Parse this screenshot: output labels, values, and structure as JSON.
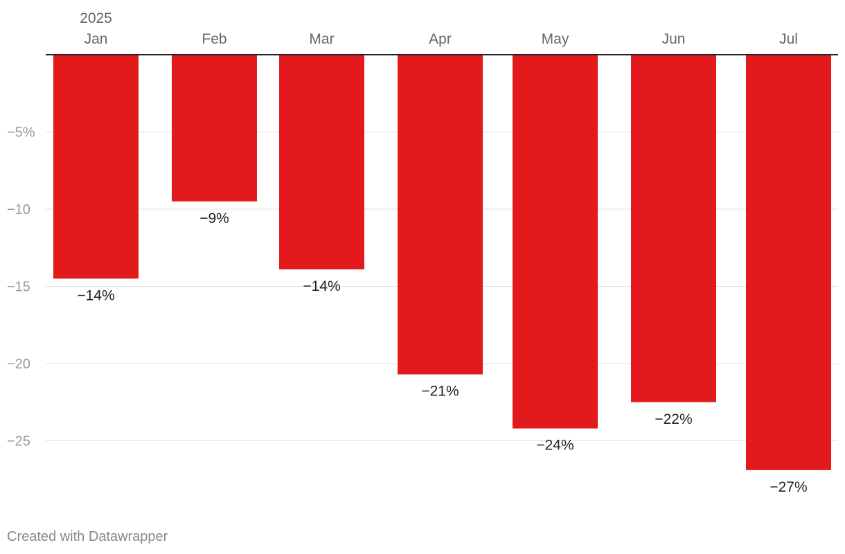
{
  "chart_data": {
    "type": "bar",
    "year_label": "2025",
    "categories": [
      "Jan",
      "Feb",
      "Mar",
      "Apr",
      "May",
      "Jun",
      "Jul"
    ],
    "values": [
      -14.5,
      -9.5,
      -13.9,
      -20.7,
      -24.2,
      -22.5,
      -26.9
    ],
    "data_labels": [
      "−14%",
      "−9%",
      "−14%",
      "−21%",
      "−24%",
      "−22%",
      "−27%"
    ],
    "y_ticks": [
      {
        "value": -5,
        "label": "−5%"
      },
      {
        "value": -10,
        "label": "−10"
      },
      {
        "value": -15,
        "label": "−15"
      },
      {
        "value": -20,
        "label": "−20"
      },
      {
        "value": -25,
        "label": "−25"
      }
    ],
    "ylim": [
      -27.8,
      0
    ],
    "grid": true,
    "colors": {
      "bar": "#e31a1c",
      "grid": "#e0e0e0",
      "axis": "#222222",
      "tick_text": "#999999",
      "category_text": "#666666",
      "label_text": "#222222"
    }
  },
  "footer": {
    "credit": "Created with Datawrapper"
  }
}
